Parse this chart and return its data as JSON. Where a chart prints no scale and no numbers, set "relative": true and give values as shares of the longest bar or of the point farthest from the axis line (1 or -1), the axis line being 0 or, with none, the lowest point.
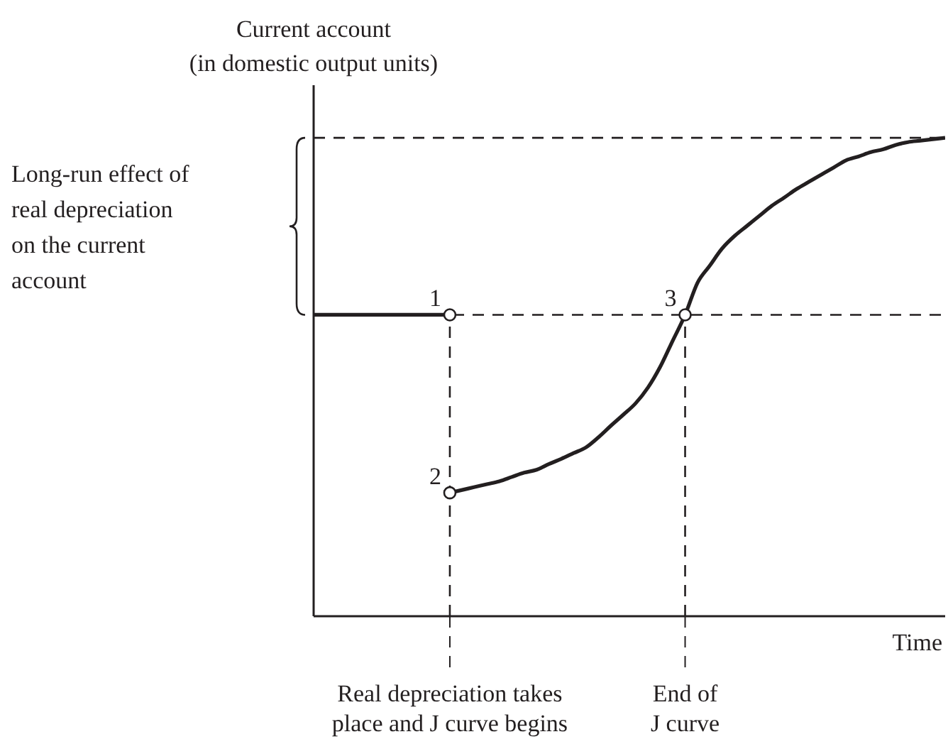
{
  "chart_data": {
    "type": "line",
    "relative": true,
    "ylabel": "Current account (in domestic output units)",
    "xlabel": "Time",
    "categories": [
      null,
      null,
      null,
      null,
      null,
      null,
      null,
      null,
      null,
      null,
      null,
      "Real depreciation takes place and J curve begins",
      null,
      null,
      null,
      null,
      null,
      null,
      null,
      null,
      null,
      null,
      null,
      null,
      null,
      null,
      null,
      null,
      null,
      null,
      "End of J curve",
      null,
      null,
      null,
      null,
      null,
      null,
      null,
      null,
      null,
      null,
      null,
      null,
      null,
      null,
      null,
      null,
      null,
      null,
      null,
      null,
      null
    ],
    "series": [
      {
        "color": "#231f20",
        "values": [
          0.63,
          0.63,
          0.63,
          0.63,
          0.63,
          0.63,
          0.63,
          0.63,
          0.63,
          0.63,
          0.63,
          0.63,
          null,
          null,
          null,
          null,
          null,
          null,
          null,
          null,
          null,
          null,
          null,
          null,
          null,
          null,
          null,
          null,
          null,
          null,
          null,
          null,
          null,
          null,
          null,
          null,
          null,
          null,
          null,
          null,
          null,
          null,
          null,
          null,
          null,
          null,
          null,
          null,
          null,
          null,
          null,
          null
        ]
      },
      {
        "color": "#231f20",
        "values": [
          null,
          null,
          null,
          null,
          null,
          null,
          null,
          null,
          null,
          null,
          null,
          0.258,
          0.264,
          0.27,
          0.276,
          0.282,
          0.291,
          0.3,
          0.306,
          0.318,
          0.329,
          0.341,
          0.353,
          0.374,
          0.398,
          0.421,
          0.445,
          0.478,
          0.522,
          0.576,
          0.63,
          0.697,
          0.733,
          0.769,
          0.795,
          0.816,
          0.837,
          0.858,
          0.875,
          0.893,
          0.908,
          0.923,
          0.938,
          0.953,
          0.961,
          0.97,
          0.976,
          0.985,
          0.991,
          0.994,
          0.997,
          1
        ]
      }
    ],
    "marker": "none",
    "line_style": "solid",
    "tick_labels": "x",
    "ref_lines": [
      {
        "axis": "y",
        "value": 1,
        "color": "#231f20",
        "line_style": "dashed"
      },
      {
        "axis": "y",
        "value": 0.63,
        "color": "#231f20",
        "line_style": "dashed"
      },
      {
        "axis": "x",
        "value": "Real depreciation takes place and J curve begins",
        "color": "#231f20",
        "line_style": "dashed"
      },
      {
        "axis": "x",
        "value": "End of J curve",
        "color": "#231f20",
        "line_style": "dashed"
      }
    ],
    "annotations": [
      "Long-run effect of real depreciation on the current account",
      {
        "text": "1",
        "x": "Real depreciation takes place and J curve begins",
        "y": 0.63
      },
      {
        "text": "2",
        "x": "Real depreciation takes place and J curve begins",
        "y": 0.258
      },
      {
        "text": "3",
        "x": "End of J curve",
        "y": 0.63
      }
    ]
  }
}
